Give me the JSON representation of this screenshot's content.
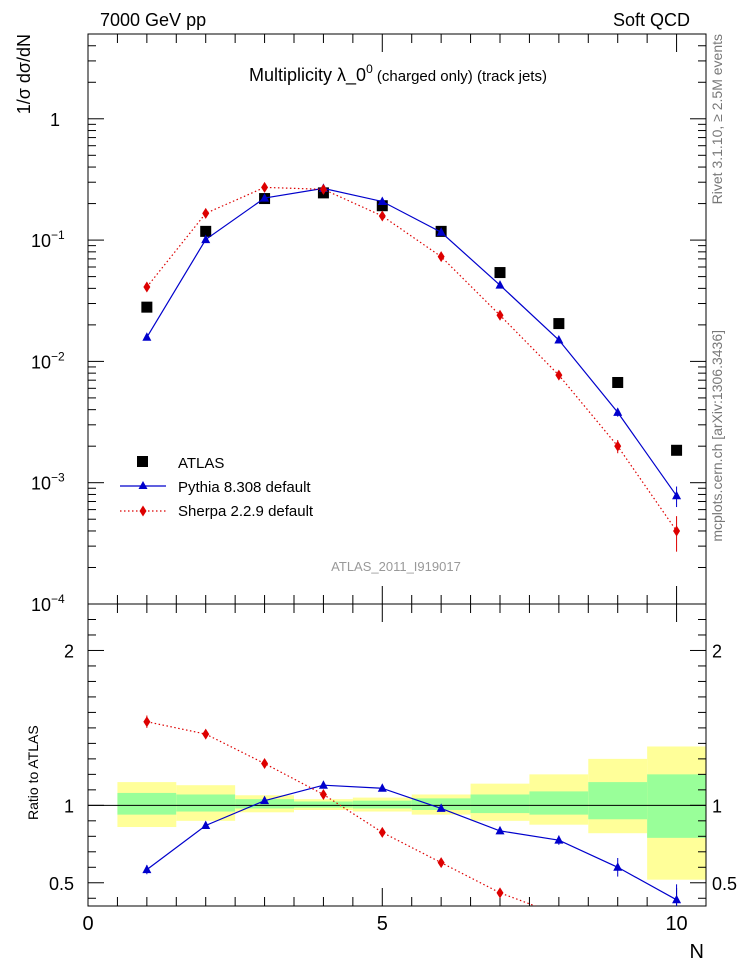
{
  "header": {
    "left": "7000 GeV pp",
    "right": "Soft QCD"
  },
  "side_labels": {
    "rivet": "Rivet 3.1.10, ≥ 2.5M events",
    "mcplots": "mcplots.cern.ch [arXiv:1306.3436]"
  },
  "analysis_id": "ATLAS_2011_I919017",
  "colors": {
    "atlas": "#000000",
    "pythia": "#0000cc",
    "sherpa": "#dd0000",
    "band_inner": "#99ff99",
    "band_outer": "#ffff99"
  },
  "chart_data": [
    {
      "type": "scatter",
      "title": "Multiplicity  λ_0",
      "title_superscript": "0",
      "title_suffix": " (charged only) (track jets)",
      "ylabel": "1/σ dσ/dN",
      "yscale": "log",
      "ylim": [
        0.0001,
        5
      ],
      "xlim": [
        0,
        10.5
      ],
      "ytick_labels": [
        {
          "base": "1",
          "exp": ""
        },
        {
          "base": "10",
          "exp": "−1"
        },
        {
          "base": "10",
          "exp": "−2"
        },
        {
          "base": "10",
          "exp": "−3"
        },
        {
          "base": "10",
          "exp": "−4"
        }
      ],
      "legend_placement": "bottom-left",
      "series": [
        {
          "name": "ATLAS",
          "marker": "square",
          "x": [
            1,
            2,
            3,
            4,
            5,
            6,
            7,
            8,
            9,
            10
          ],
          "y": [
            0.028,
            0.118,
            0.22,
            0.245,
            0.192,
            0.118,
            0.054,
            0.0205,
            0.0067,
            0.00185
          ]
        },
        {
          "name": "Pythia 8.308 default",
          "marker": "triangle",
          "line": "solid",
          "x": [
            1,
            2,
            3,
            4,
            5,
            6,
            7,
            8,
            9,
            10
          ],
          "y": [
            0.0158,
            0.101,
            0.222,
            0.267,
            0.208,
            0.116,
            0.0425,
            0.015,
            0.0038,
            0.00078
          ],
          "yerr": [
            0,
            0,
            0,
            0,
            0,
            0,
            0,
            0,
            0.0003,
            0.00015
          ]
        },
        {
          "name": "Sherpa 2.2.9 default",
          "marker": "diamond",
          "line": "dotted",
          "x": [
            1,
            2,
            3,
            4,
            5,
            6,
            7,
            8,
            9,
            10
          ],
          "y": [
            0.041,
            0.166,
            0.272,
            0.262,
            0.158,
            0.073,
            0.024,
            0.0077,
            0.002,
            0.0004
          ],
          "yerr": [
            0,
            0,
            0,
            0,
            0,
            0,
            0,
            0,
            0.00025,
            0.00013
          ]
        }
      ]
    },
    {
      "type": "scatter",
      "ylabel": "Ratio to ATLAS",
      "xlabel": "N",
      "xlim": [
        0,
        10.5
      ],
      "ylim": [
        0.35,
        2.3
      ],
      "x_tick_labels": [
        "0",
        "5",
        "10"
      ],
      "y_tick_labels": [
        "0.5",
        "1",
        "2"
      ],
      "reference_line": 1,
      "uncertainty_band": {
        "x_low": [
          0.5,
          1.5,
          2.5,
          3.5,
          4.5,
          5.5,
          6.5,
          7.5,
          8.5,
          9.5
        ],
        "x_high": [
          1.5,
          2.5,
          3.5,
          4.5,
          5.5,
          6.5,
          7.5,
          8.5,
          9.5,
          10.5
        ],
        "inner_low": [
          0.94,
          0.96,
          0.98,
          0.985,
          0.98,
          0.97,
          0.95,
          0.94,
          0.91,
          0.79
        ],
        "inner_high": [
          1.08,
          1.07,
          1.04,
          1.025,
          1.03,
          1.045,
          1.07,
          1.09,
          1.15,
          1.2
        ],
        "outer_low": [
          0.86,
          0.9,
          0.955,
          0.97,
          0.96,
          0.94,
          0.9,
          0.875,
          0.82,
          0.52
        ],
        "outer_high": [
          1.15,
          1.13,
          1.065,
          1.04,
          1.05,
          1.07,
          1.14,
          1.2,
          1.3,
          1.38
        ]
      },
      "series": [
        {
          "name": "Pythia 8.308 default",
          "marker": "triangle",
          "line": "solid",
          "x": [
            1,
            2,
            3,
            4,
            5,
            6,
            7,
            8,
            9,
            10
          ],
          "y": [
            0.585,
            0.87,
            1.03,
            1.13,
            1.11,
            0.98,
            0.835,
            0.775,
            0.6,
            0.39
          ],
          "yerr": [
            0.03,
            0,
            0,
            0,
            0,
            0,
            0,
            0.03,
            0.06,
            0.1
          ]
        },
        {
          "name": "Sherpa 2.2.9 default",
          "marker": "diamond",
          "line": "dotted",
          "x": [
            1,
            2,
            3,
            4,
            5,
            6,
            7,
            7.6
          ],
          "y": [
            1.54,
            1.46,
            1.27,
            1.07,
            0.825,
            0.63,
            0.435,
            0.35
          ],
          "yerr": [
            0.04,
            0,
            0,
            0,
            0,
            0,
            0.03,
            0
          ]
        }
      ]
    }
  ]
}
